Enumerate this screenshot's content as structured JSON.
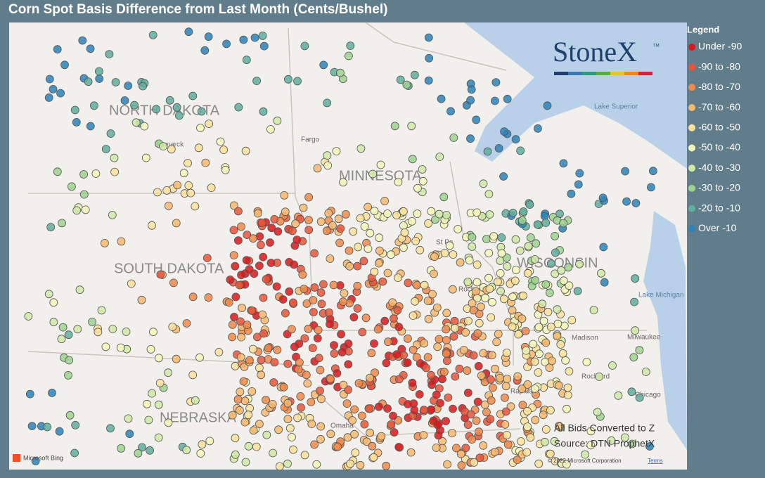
{
  "header": {
    "title": "Corn Spot Basis Difference from Last Month (Cents/Bushel)"
  },
  "legend": {
    "title": "Legend",
    "items": [
      {
        "label": "Under -90",
        "color": "#d7191c"
      },
      {
        "label": "-90 to -80",
        "color": "#e8553a"
      },
      {
        "label": "-80 to -70",
        "color": "#f08a4b"
      },
      {
        "label": "-70 to -60",
        "color": "#f7b96e"
      },
      {
        "label": "-60 to -50",
        "color": "#fbe19a"
      },
      {
        "label": "-50 to -40",
        "color": "#f4f7b8"
      },
      {
        "label": "-40 to -30",
        "color": "#cfe9a6"
      },
      {
        "label": "-30 to -20",
        "color": "#9dd28e"
      },
      {
        "label": "-20 to -10",
        "color": "#5fae9f"
      },
      {
        "label": "Over -10",
        "color": "#2b83ba"
      }
    ]
  },
  "map": {
    "states": [
      "NORTH DAKOTA",
      "SOUTH DAKOTA",
      "MINNESOTA",
      "WISCONSIN",
      "NEBRASKA"
    ],
    "places": [
      "Bismarck",
      "Fargo",
      "St Pa",
      "Rochester",
      "Lake Superior",
      "Lake Michigan",
      "Milwaukee",
      "Madison",
      "Rockford",
      "Chicago",
      "Rapids",
      "Omaha"
    ]
  },
  "logo": {
    "text": "StoneX",
    "mark": "TM"
  },
  "notes": [
    "All Bids Converted to Z",
    "Source: DTN ProphetX"
  ],
  "attribution": {
    "provider": "Microsoft Bing",
    "copyright": "© 2022 Microsoft Corporation",
    "terms": "Terms"
  }
}
